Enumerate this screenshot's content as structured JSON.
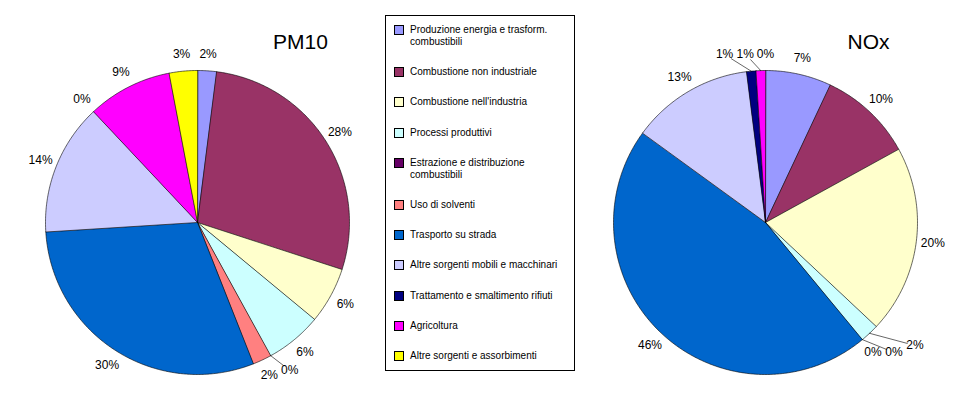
{
  "chart_data": [
    {
      "type": "pie",
      "title": "PM10",
      "categories": [
        "Produzione energia e trasform. combustibili",
        "Combustione non industriale",
        "Combustione nell'industria",
        "Processi produttivi",
        "Estrazione e distribuzione combustibili",
        "Uso di solventi",
        "Trasporto su strada",
        "Altre sorgenti mobili e macchinari",
        "Trattamento e smaltimento rifiuti",
        "Agricoltura",
        "Altre sorgenti e assorbimenti"
      ],
      "values": [
        2,
        28,
        6,
        6,
        0,
        2,
        30,
        14,
        0,
        9,
        3
      ],
      "value_labels": [
        "2%",
        "28%",
        "6%",
        "6%",
        "0%",
        "2%",
        "30%",
        "14%",
        "0%",
        "9%",
        "3%"
      ],
      "colors": [
        "#9999ff",
        "#993366",
        "#ffffcc",
        "#ccffff",
        "#660066",
        "#ff8080",
        "#0066cc",
        "#ccccff",
        "#000080",
        "#ff00ff",
        "#ffff00"
      ],
      "data_labels": true,
      "legend": "right"
    },
    {
      "type": "pie",
      "title": "NOx",
      "categories": [
        "Produzione energia e trasform. combustibili",
        "Combustione non industriale",
        "Combustione nell'industria",
        "Processi produttivi",
        "Estrazione e distribuzione combustibili",
        "Uso di solventi",
        "Trasporto su strada",
        "Altre sorgenti mobili e macchinari",
        "Trattamento e smaltimento rifiuti",
        "Agricoltura",
        "Altre sorgenti e assorbimenti"
      ],
      "values": [
        7,
        10,
        20,
        2,
        0,
        0,
        46,
        13,
        1,
        1,
        0
      ],
      "value_labels": [
        "7%",
        "10%",
        "20%",
        "2%",
        "0%",
        "0%",
        "46%",
        "13%",
        "1%",
        "1%",
        "0%"
      ],
      "colors": [
        "#9999ff",
        "#993366",
        "#ffffcc",
        "#ccffff",
        "#660066",
        "#ff8080",
        "#0066cc",
        "#ccccff",
        "#000080",
        "#ff00ff",
        "#ffff00"
      ],
      "data_labels": true
    }
  ]
}
